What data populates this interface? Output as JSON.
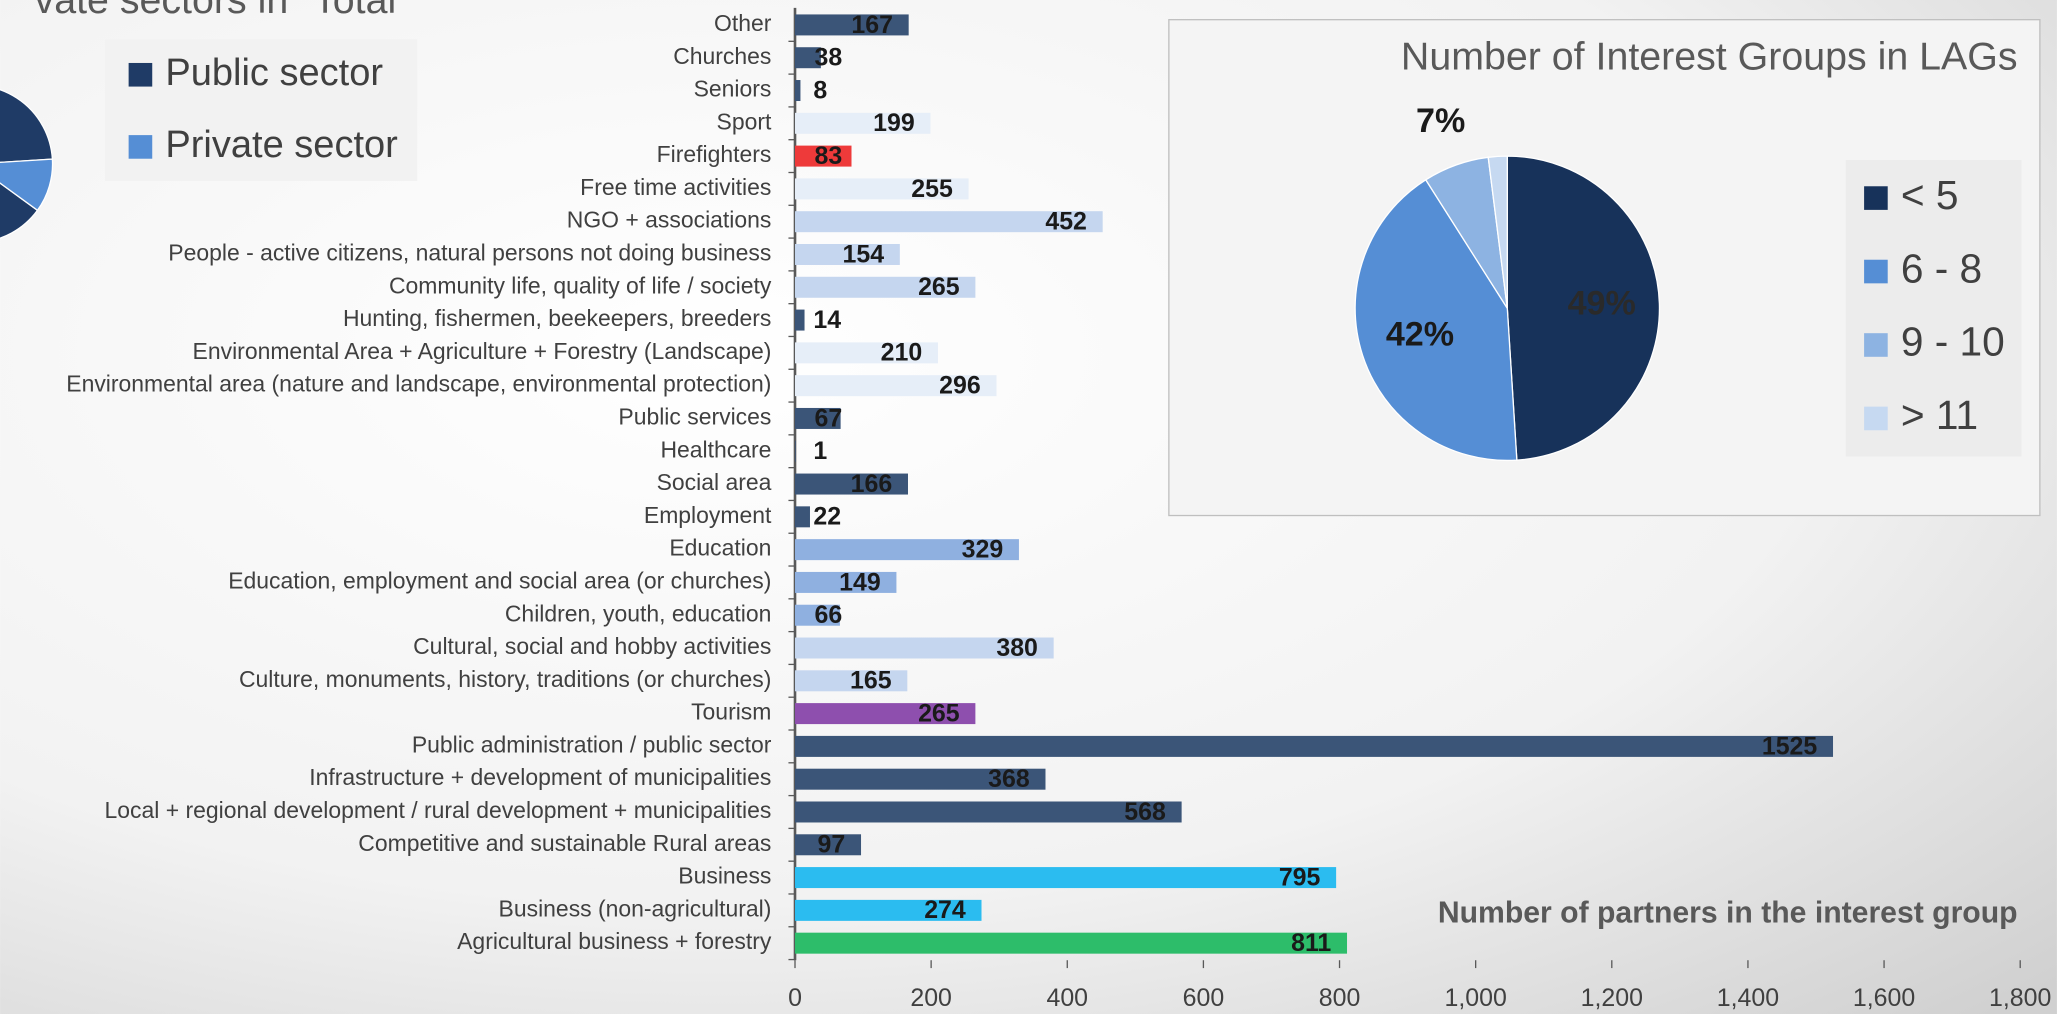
{
  "chart_data": [
    {
      "type": "pie",
      "title": "vate sectors in \"Total",
      "labels": [
        "Public sector",
        "Private sector"
      ],
      "values": [
        89,
        11
      ],
      "colors": [
        "#1f3b66",
        "#558ed5"
      ]
    },
    {
      "type": "barh",
      "x_label": "Number of partners in the  interest group",
      "categories": [
        "Other",
        "Churches",
        "Seniors",
        "Sport",
        "Firefighters",
        "Free time activities",
        "NGO + associations",
        "People - active citizens, natural persons not doing business",
        "Community life, quality of life / society",
        "Hunting, fishermen, beekeepers, breeders",
        "Environmental Area + Agriculture + Forestry (Landscape)",
        "Environmental area (nature and landscape, environmental protection)",
        "Public services",
        "Healthcare",
        "Social area",
        "Employment",
        "Education",
        "Education, employment and social area (or churches)",
        "Children, youth, education",
        "Cultural, social and hobby activities",
        "Culture, monuments, history, traditions (or churches)",
        "Tourism",
        "Public administration / public sector",
        "Infrastructure + development of municipalities",
        "Local + regional development / rural development + municipalities",
        "Competitive and sustainable Rural areas",
        "Business",
        "Business (non-agricultural)",
        "Agricultural business + forestry"
      ],
      "values": [
        167,
        38,
        8,
        199,
        83,
        255,
        452,
        154,
        265,
        14,
        210,
        296,
        67,
        1,
        166,
        22,
        329,
        149,
        66,
        380,
        165,
        265,
        1525,
        368,
        568,
        97,
        795,
        274,
        811
      ],
      "colors": [
        "#3b5578",
        "#3b5578",
        "#3b5578",
        "#e6eef8",
        "#ee3a3a",
        "#e6eef8",
        "#c5d6ef",
        "#c5d6ef",
        "#c5d6ef",
        "#3b5578",
        "#e6eef8",
        "#e6eef8",
        "#3b5578",
        "#3b5578",
        "#3b5578",
        "#3b5578",
        "#8fb0e0",
        "#8fb0e0",
        "#8fb0e0",
        "#c5d6ef",
        "#c5d6ef",
        "#8e4fae",
        "#3b5578",
        "#3b5578",
        "#3b5578",
        "#3b5578",
        "#2bbcf0",
        "#2bbcf0",
        "#2dbd6a"
      ],
      "xlim": [
        0,
        1800
      ],
      "xticks": [
        0,
        200,
        400,
        600,
        800,
        {
          "value": 1000,
          "label": "1,000"
        },
        {
          "value": 1200,
          "label": "1,200"
        },
        {
          "value": 1400,
          "label": "1,400"
        },
        {
          "value": 1600,
          "label": "1,600"
        },
        {
          "value": 1800,
          "label": "1,800"
        }
      ]
    },
    {
      "type": "pie",
      "title": "Number of Interest Groups in LAGs",
      "labels": [
        "< 5",
        "6 - 8",
        "9 - 10",
        "> 11"
      ],
      "values": [
        49,
        42,
        7,
        2
      ],
      "value_labels": [
        "49%",
        "42%",
        "7%",
        null
      ],
      "colors": [
        "#17325a",
        "#558ed5",
        "#8db3e2",
        "#c6d9f1"
      ]
    }
  ]
}
